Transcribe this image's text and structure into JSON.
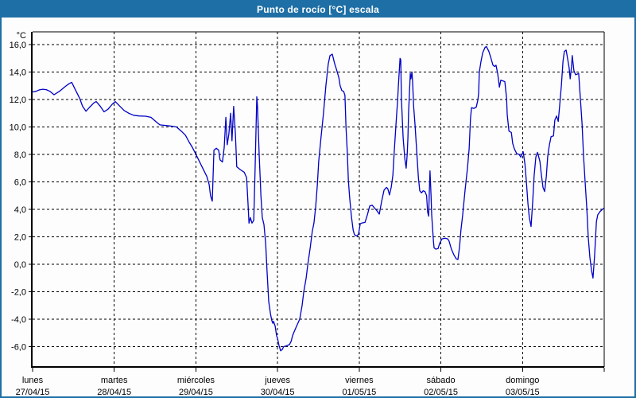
{
  "window": {
    "title": "Punto de rocío [°C] escala"
  },
  "colors": {
    "titlebar_bg": "#1e6fa5",
    "window_border": "#1e6fa5",
    "background": "#fcfdfc",
    "grid": "#000000",
    "axis": "#000000",
    "text": "#000000",
    "title_text": "#ffffff",
    "line": "#0000c8"
  },
  "chart_data": {
    "type": "line",
    "title": "Punto de rocío [°C] escala",
    "ylabel": "°C",
    "ylim": [
      -7.5,
      16.9
    ],
    "yticks": [
      16,
      14,
      12,
      10,
      8,
      6,
      4,
      2,
      0,
      -2,
      -4,
      -6
    ],
    "ytick_labels": [
      "16,0",
      "14,0",
      "12,0",
      "10,0",
      "8,0",
      "6,0",
      "4,0",
      "2,0",
      "0,0",
      "-2,0",
      "-4,0",
      "-6,0"
    ],
    "grid": "dashed",
    "legend_position": "none",
    "x_axis": {
      "unit": "hours",
      "range": [
        0,
        168
      ],
      "day_tick_hours": [
        0,
        24,
        48,
        72,
        96,
        120,
        144,
        168
      ],
      "day_labels": [
        {
          "name": "lunes",
          "date": "27/04/15"
        },
        {
          "name": "martes",
          "date": "28/04/15"
        },
        {
          "name": "miércoles",
          "date": "29/04/15"
        },
        {
          "name": "jueves",
          "date": "30/04/15"
        },
        {
          "name": "viernes",
          "date": "01/05/15"
        },
        {
          "name": "sábado",
          "date": "02/05/15"
        },
        {
          "name": "domingo",
          "date": "03/05/15"
        }
      ]
    },
    "series": [
      {
        "name": "Punto de rocío [°C]",
        "color": "#0000c8",
        "points": [
          [
            0,
            12.55
          ],
          [
            1,
            12.6
          ],
          [
            2,
            12.7
          ],
          [
            3,
            12.75
          ],
          [
            4,
            12.72
          ],
          [
            5.1,
            12.6
          ],
          [
            6.3,
            12.35
          ],
          [
            7.9,
            12.6
          ],
          [
            9.6,
            12.95
          ],
          [
            10.7,
            13.15
          ],
          [
            11.5,
            13.25
          ],
          [
            12.6,
            12.7
          ],
          [
            13.8,
            12.1
          ],
          [
            14.7,
            11.5
          ],
          [
            15.7,
            11.15
          ],
          [
            16.8,
            11.45
          ],
          [
            18,
            11.75
          ],
          [
            18.7,
            11.85
          ],
          [
            19.9,
            11.5
          ],
          [
            21,
            11.1
          ],
          [
            22.2,
            11.3
          ],
          [
            23.4,
            11.65
          ],
          [
            24.3,
            11.85
          ],
          [
            25.5,
            11.55
          ],
          [
            26.9,
            11.2
          ],
          [
            28.3,
            11.0
          ],
          [
            29.7,
            10.85
          ],
          [
            31.3,
            10.8
          ],
          [
            33.2,
            10.78
          ],
          [
            34.8,
            10.7
          ],
          [
            36.2,
            10.4
          ],
          [
            37.4,
            10.15
          ],
          [
            39.5,
            10.1
          ],
          [
            41.1,
            10.05
          ],
          [
            42.3,
            10.0
          ],
          [
            43.7,
            9.7
          ],
          [
            44.9,
            9.4
          ],
          [
            46,
            8.9
          ],
          [
            47,
            8.5
          ],
          [
            47.9,
            8.05
          ],
          [
            48.8,
            7.6
          ],
          [
            50,
            7.0
          ],
          [
            51.2,
            6.4
          ],
          [
            51.9,
            5.8
          ],
          [
            52.3,
            5.0
          ],
          [
            52.8,
            4.6
          ],
          [
            53.3,
            8.3
          ],
          [
            54,
            8.45
          ],
          [
            54.7,
            8.3
          ],
          [
            55.1,
            7.6
          ],
          [
            55.8,
            7.45
          ],
          [
            56.3,
            8.5
          ],
          [
            56.8,
            10.7
          ],
          [
            57.2,
            8.7
          ],
          [
            57.7,
            9.5
          ],
          [
            58.2,
            11.0
          ],
          [
            58.6,
            9.0
          ],
          [
            59.1,
            11.5
          ],
          [
            59.6,
            9.5
          ],
          [
            60,
            7.1
          ],
          [
            61,
            6.9
          ],
          [
            62.2,
            6.7
          ],
          [
            62.9,
            6.3
          ],
          [
            63.3,
            4.5
          ],
          [
            63.6,
            3.0
          ],
          [
            64,
            3.4
          ],
          [
            64.5,
            3.0
          ],
          [
            65,
            3.2
          ],
          [
            65.4,
            7.0
          ],
          [
            65.9,
            12.2
          ],
          [
            66.1,
            11.5
          ],
          [
            66.6,
            8.0
          ],
          [
            67.1,
            5.0
          ],
          [
            67.5,
            3.4
          ],
          [
            68,
            2.9
          ],
          [
            68.5,
            1.5
          ],
          [
            68.9,
            -0.5
          ],
          [
            69.4,
            -2.7
          ],
          [
            69.9,
            -3.6
          ],
          [
            70.3,
            -4.1
          ],
          [
            70.6,
            -4.3
          ],
          [
            70.8,
            -4.15
          ],
          [
            71.3,
            -4.5
          ],
          [
            71.7,
            -5.2
          ],
          [
            72,
            -5.4
          ],
          [
            72.4,
            -5.9
          ],
          [
            72.9,
            -6.3
          ],
          [
            73.4,
            -6.2
          ],
          [
            73.8,
            -6.0
          ],
          [
            74.5,
            -5.95
          ],
          [
            75.5,
            -5.85
          ],
          [
            76,
            -5.6
          ],
          [
            76.4,
            -5.2
          ],
          [
            76.9,
            -4.9
          ],
          [
            77.6,
            -4.5
          ],
          [
            78.5,
            -4.0
          ],
          [
            79.2,
            -3.0
          ],
          [
            79.7,
            -2.0
          ],
          [
            80.4,
            -1.0
          ],
          [
            80.9,
            0.0
          ],
          [
            81.6,
            1.2
          ],
          [
            82.2,
            2.4
          ],
          [
            82.7,
            3.0
          ],
          [
            83.2,
            4.2
          ],
          [
            83.7,
            5.8
          ],
          [
            84.1,
            7.5
          ],
          [
            84.8,
            9.3
          ],
          [
            85.5,
            11.0
          ],
          [
            86.2,
            13.0
          ],
          [
            86.9,
            14.6
          ],
          [
            87.4,
            15.2
          ],
          [
            88.1,
            15.3
          ],
          [
            88.8,
            14.6
          ],
          [
            89.3,
            14.2
          ],
          [
            90,
            13.6
          ],
          [
            90.4,
            13.0
          ],
          [
            90.9,
            12.65
          ],
          [
            91.4,
            12.6
          ],
          [
            91.8,
            12.3
          ],
          [
            92.1,
            10.0
          ],
          [
            92.5,
            8.1
          ],
          [
            92.8,
            6.1
          ],
          [
            93.2,
            4.8
          ],
          [
            93.7,
            3.5
          ],
          [
            94.2,
            2.5
          ],
          [
            94.6,
            2.15
          ],
          [
            95.3,
            2.05
          ],
          [
            95.8,
            2.2
          ],
          [
            96.3,
            2.95
          ],
          [
            96.7,
            3.0
          ],
          [
            97.7,
            3.05
          ],
          [
            98.4,
            3.6
          ],
          [
            99.1,
            4.25
          ],
          [
            99.8,
            4.3
          ],
          [
            100.5,
            4.1
          ],
          [
            101.2,
            3.9
          ],
          [
            101.9,
            3.65
          ],
          [
            102.6,
            4.6
          ],
          [
            103.3,
            5.4
          ],
          [
            104,
            5.6
          ],
          [
            104.4,
            5.5
          ],
          [
            104.9,
            5.05
          ],
          [
            105.4,
            5.6
          ],
          [
            105.9,
            6.5
          ],
          [
            106.3,
            8.2
          ],
          [
            106.8,
            10.2
          ],
          [
            107.3,
            12.0
          ],
          [
            107.5,
            13.0
          ],
          [
            108,
            15.0
          ],
          [
            108.2,
            14.9
          ],
          [
            108.4,
            12.1
          ],
          [
            108.9,
            9.2
          ],
          [
            109.4,
            7.7
          ],
          [
            109.8,
            7.0
          ],
          [
            110.1,
            8.0
          ],
          [
            110.3,
            9.2
          ],
          [
            110.5,
            11.0
          ],
          [
            111,
            13.9
          ],
          [
            111.2,
            13.5
          ],
          [
            111.5,
            14.0
          ],
          [
            111.7,
            13.3
          ],
          [
            112,
            11.5
          ],
          [
            112.4,
            10.2
          ],
          [
            112.9,
            8.2
          ],
          [
            113.4,
            6.3
          ],
          [
            113.8,
            5.35
          ],
          [
            114.3,
            5.2
          ],
          [
            114.8,
            5.35
          ],
          [
            115.3,
            5.3
          ],
          [
            115.8,
            5.0
          ],
          [
            116.1,
            3.8
          ],
          [
            116.4,
            3.5
          ],
          [
            116.6,
            5.2
          ],
          [
            116.8,
            6.8
          ],
          [
            117.1,
            5.0
          ],
          [
            117.3,
            3.6
          ],
          [
            117.8,
            1.7
          ],
          [
            118,
            1.2
          ],
          [
            118.5,
            1.1
          ],
          [
            119.2,
            1.15
          ],
          [
            119.6,
            1.5
          ],
          [
            120.3,
            1.85
          ],
          [
            121.3,
            1.9
          ],
          [
            122,
            1.85
          ],
          [
            122.4,
            1.7
          ],
          [
            123.1,
            1.1
          ],
          [
            123.8,
            0.7
          ],
          [
            124.5,
            0.4
          ],
          [
            125,
            0.35
          ],
          [
            125.5,
            1.3
          ],
          [
            125.9,
            2.5
          ],
          [
            126.4,
            3.6
          ],
          [
            127.1,
            5.4
          ],
          [
            127.8,
            7.0
          ],
          [
            128.3,
            8.4
          ],
          [
            128.7,
            10.6
          ],
          [
            129,
            11.4
          ],
          [
            129.7,
            11.35
          ],
          [
            130.4,
            11.45
          ],
          [
            130.9,
            12.0
          ],
          [
            131.1,
            12.5
          ],
          [
            131.3,
            14.0
          ],
          [
            131.8,
            14.8
          ],
          [
            132.3,
            15.4
          ],
          [
            133,
            15.8
          ],
          [
            133.4,
            15.85
          ],
          [
            134.1,
            15.5
          ],
          [
            134.6,
            15.1
          ],
          [
            135.3,
            14.5
          ],
          [
            135.8,
            14.4
          ],
          [
            136.2,
            14.5
          ],
          [
            136.7,
            13.9
          ],
          [
            137.2,
            12.9
          ],
          [
            137.6,
            13.4
          ],
          [
            138.3,
            13.35
          ],
          [
            138.8,
            13.3
          ],
          [
            139.3,
            12.1
          ],
          [
            139.5,
            10.9
          ],
          [
            140,
            9.7
          ],
          [
            140.7,
            9.6
          ],
          [
            141.1,
            8.8
          ],
          [
            141.6,
            8.4
          ],
          [
            142.3,
            8.05
          ],
          [
            143,
            8.0
          ],
          [
            143.5,
            7.8
          ],
          [
            144,
            8.1
          ],
          [
            144.2,
            8.2
          ],
          [
            144.7,
            7.3
          ],
          [
            145.1,
            6.1
          ],
          [
            145.6,
            4.4
          ],
          [
            146,
            3.4
          ],
          [
            146.5,
            2.75
          ],
          [
            147,
            4.6
          ],
          [
            147.4,
            6.4
          ],
          [
            147.9,
            7.8
          ],
          [
            148.4,
            8.15
          ],
          [
            149.1,
            7.5
          ],
          [
            149.5,
            6.6
          ],
          [
            150,
            5.6
          ],
          [
            150.5,
            5.3
          ],
          [
            151,
            6.4
          ],
          [
            151.4,
            7.9
          ],
          [
            151.9,
            8.7
          ],
          [
            152.4,
            9.3
          ],
          [
            153.1,
            9.35
          ],
          [
            153.5,
            10.5
          ],
          [
            154,
            10.8
          ],
          [
            154.5,
            10.4
          ],
          [
            154.9,
            11.5
          ],
          [
            155.4,
            13.0
          ],
          [
            155.9,
            14.8
          ],
          [
            156.3,
            15.5
          ],
          [
            156.8,
            15.6
          ],
          [
            157.3,
            14.9
          ],
          [
            157.7,
            14.3
          ],
          [
            158,
            13.5
          ],
          [
            158.4,
            14.4
          ],
          [
            158.6,
            15.2
          ],
          [
            159.1,
            14.1
          ],
          [
            159.6,
            13.8
          ],
          [
            160.1,
            13.85
          ],
          [
            160.5,
            13.9
          ],
          [
            161,
            12.1
          ],
          [
            161.5,
            10.2
          ],
          [
            161.9,
            8.0
          ],
          [
            162.4,
            6.0
          ],
          [
            162.9,
            4.0
          ],
          [
            163.3,
            2.0
          ],
          [
            163.8,
            0.5
          ],
          [
            164.3,
            -0.5
          ],
          [
            164.7,
            -1.0
          ],
          [
            165.2,
            0.7
          ],
          [
            165.7,
            3.1
          ],
          [
            166.1,
            3.6
          ],
          [
            166.8,
            3.85
          ],
          [
            167.5,
            4.0
          ],
          [
            168,
            4.1
          ]
        ]
      }
    ]
  }
}
